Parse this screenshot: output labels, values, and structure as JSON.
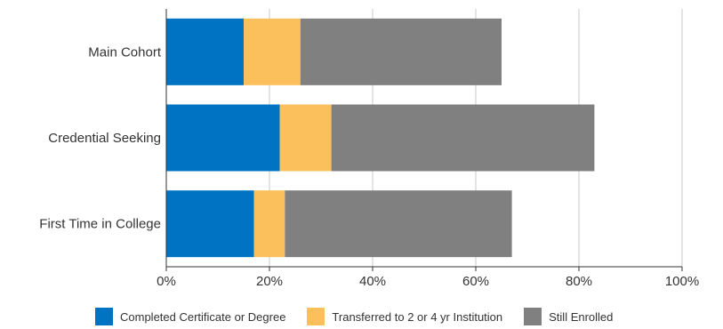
{
  "chart_data": {
    "type": "bar",
    "orientation": "horizontal",
    "stacked": true,
    "categories": [
      "Main Cohort",
      "Credential Seeking",
      "First Time in College"
    ],
    "series": [
      {
        "name": "Completed Certificate or Degree",
        "color": "#0073c2",
        "values": [
          15,
          22,
          17
        ]
      },
      {
        "name": "Transferred to 2 or 4 yr Institution",
        "color": "#fbbf5b",
        "values": [
          11,
          10,
          6
        ]
      },
      {
        "name": "Still Enrolled",
        "color": "#808080",
        "values": [
          39,
          51,
          44
        ]
      }
    ],
    "xlim": [
      0,
      100
    ],
    "xticks": [
      "0%",
      "20%",
      "40%",
      "60%",
      "80%",
      "100%"
    ],
    "grid": true,
    "legend_position": "bottom"
  }
}
